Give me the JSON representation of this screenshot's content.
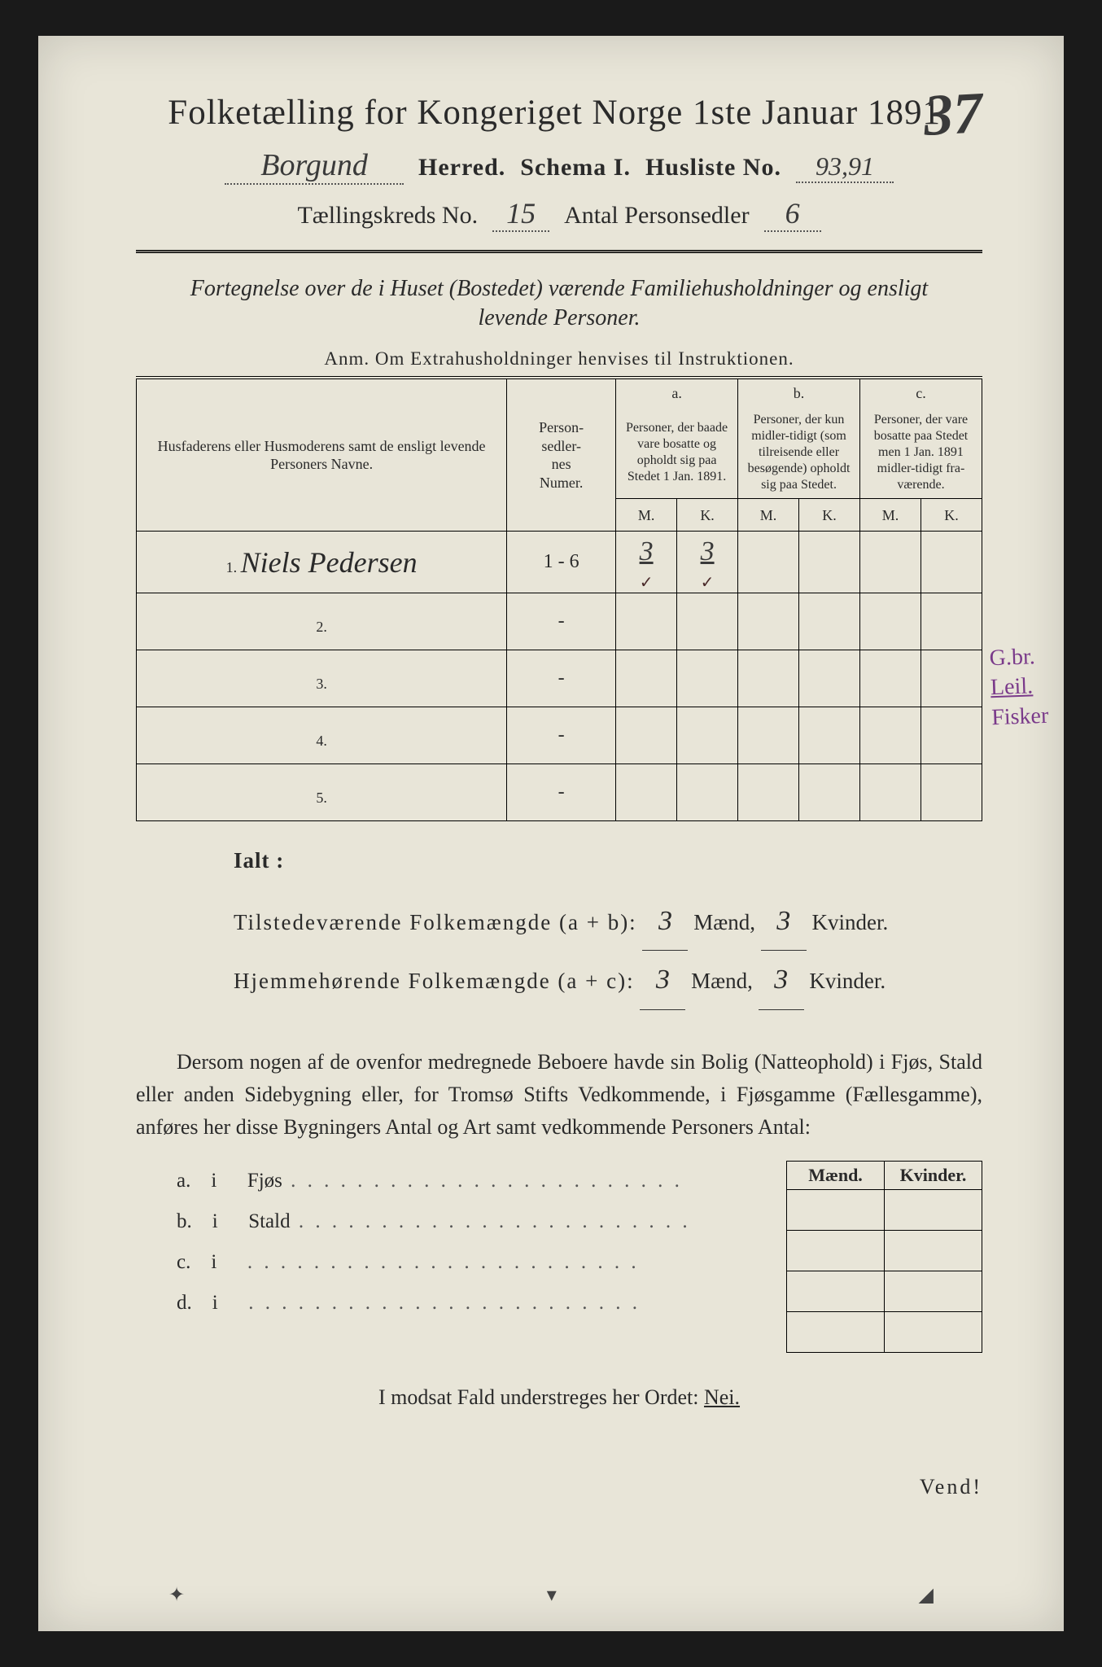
{
  "corner_number": "37",
  "title": "Folketælling for Kongeriget Norge 1ste Januar 1891.",
  "header": {
    "herred_value": "Borgund",
    "herred_label": "Herred.",
    "schema_label": "Schema I.",
    "husliste_label": "Husliste No.",
    "husliste_value": "93,91",
    "kreds_label": "Tællingskreds No.",
    "kreds_value": "15",
    "antal_label": "Antal Personsedler",
    "antal_value": "6"
  },
  "subtitle_line1": "Fortegnelse over de i Huset (Bostedet) værende Familiehusholdninger og ensligt",
  "subtitle_line2": "levende Personer.",
  "anm": "Anm.   Om Extrahusholdninger henvises til Instruktionen.",
  "table": {
    "col1": "Husfaderens eller Husmoderens samt de ensligt levende Personers Navne.",
    "col2": "Person-\nsedler-\nnes\nNumer.",
    "group_a_head": "a.",
    "group_a": "Personer, der baade vare bosatte og opholdt sig paa Stedet 1 Jan. 1891.",
    "group_b_head": "b.",
    "group_b": "Personer, der kun midler-tidigt (som tilreisende eller besøgende) opholdt sig paa Stedet.",
    "group_c_head": "c.",
    "group_c": "Personer, der vare bosatte paa Stedet men 1 Jan. 1891 midler-tidigt fra-værende.",
    "mk_m": "M.",
    "mk_k": "K.",
    "rows": [
      {
        "n": "1.",
        "name": "Niels Pedersen",
        "num": "1 - 6",
        "a_m": "3",
        "a_k": "3",
        "b_m": "",
        "b_k": "",
        "c_m": "",
        "c_k": ""
      },
      {
        "n": "2.",
        "name": "",
        "num": "-",
        "a_m": "",
        "a_k": "",
        "b_m": "",
        "b_k": "",
        "c_m": "",
        "c_k": ""
      },
      {
        "n": "3.",
        "name": "",
        "num": "-",
        "a_m": "",
        "a_k": "",
        "b_m": "",
        "b_k": "",
        "c_m": "",
        "c_k": ""
      },
      {
        "n": "4.",
        "name": "",
        "num": "-",
        "a_m": "",
        "a_k": "",
        "b_m": "",
        "b_k": "",
        "c_m": "",
        "c_k": ""
      },
      {
        "n": "5.",
        "name": "",
        "num": "-",
        "a_m": "",
        "a_k": "",
        "b_m": "",
        "b_k": "",
        "c_m": "",
        "c_k": ""
      }
    ]
  },
  "margin_notes": [
    "G.br.",
    "Leil.",
    "Fisker"
  ],
  "ialt": {
    "heading": "Ialt :",
    "line1_label": "Tilstedeværende  Folkemængde (a + b):",
    "line1_m": "3",
    "line1_k": "3",
    "line2_label": "Hjemmehørende  Folkemængde (a + c):",
    "line2_m": "3",
    "line2_k": "3",
    "maend": "Mænd,",
    "kvinder": "Kvinder."
  },
  "paragraph": "Dersom nogen af de ovenfor medregnede Beboere havde sin Bolig (Natteophold) i Fjøs, Stald eller anden Sidebygning eller, for Tromsø Stifts Vedkommende, i Fjøsgamme (Fællesgamme), anføres her disse Bygningers Antal og Art samt vedkommende Personers Antal:",
  "side_table": {
    "maend": "Mænd.",
    "kvinder": "Kvinder."
  },
  "items": [
    {
      "idx": "a.",
      "i": "i",
      "label": "Fjøs"
    },
    {
      "idx": "b.",
      "i": "i",
      "label": "Stald"
    },
    {
      "idx": "c.",
      "i": "i",
      "label": ""
    },
    {
      "idx": "d.",
      "i": "i",
      "label": ""
    }
  ],
  "nei_line_prefix": "I modsat Fald understreges her Ordet: ",
  "nei_word": "Nei.",
  "vend": "Vend!",
  "colors": {
    "paper": "#e8e5d8",
    "ink": "#2a2a2a",
    "pencil_blue": "#2a5a9a",
    "pencil_purple": "#7a3a8a"
  }
}
